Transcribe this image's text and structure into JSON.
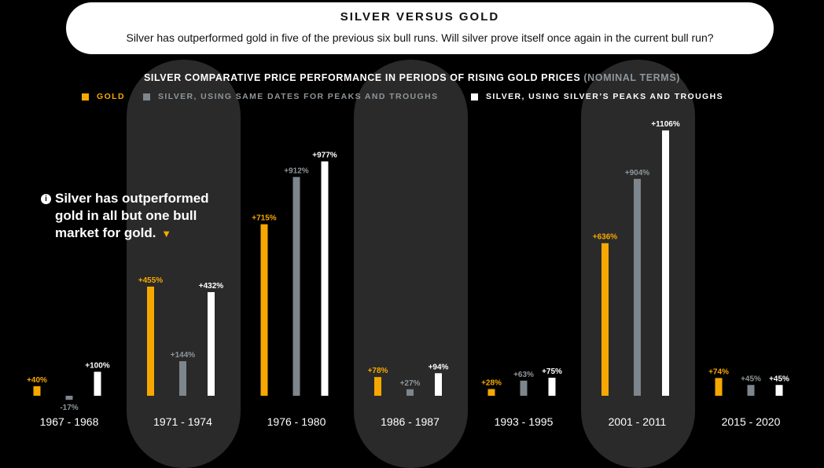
{
  "header": {
    "title": "SILVER VERSUS GOLD",
    "subtitle": "Silver has outperformed gold in five of the previous six bull runs. Will silver prove itself once again in the current bull run?"
  },
  "chart_title": {
    "main": "SILVER COMPARATIVE PRICE PERFORMANCE IN PERIODS OF RISING GOLD PRICES",
    "note": "(NOMINAL TERMS)"
  },
  "legend": {
    "gold": "GOLD",
    "silver_same": "SILVER, USING SAME DATES FOR PEAKS AND TROUGHS",
    "silver_own": "SILVER, USING SILVER’S PEAKS AND TROUGHS"
  },
  "callout": {
    "line1": "Silver has outperformed",
    "line2": "gold in all but one bull",
    "line3": "market for gold.",
    "icon": "info-icon",
    "pointer_icon": "down-triangle-icon"
  },
  "colors": {
    "gold": "#f7a800",
    "silver_same": "#7d868c",
    "silver_own": "#ffffff",
    "highlight_band": "#2a2a2a"
  },
  "chart_data": {
    "type": "bar",
    "categories": [
      "1967 - 1968",
      "1971 - 1974",
      "1976 - 1980",
      "1986 - 1987",
      "1993 - 1995",
      "2001 - 2011",
      "2015 - 2020"
    ],
    "highlighted_categories": [
      "1971 - 1974",
      "1986 - 1987",
      "2001 - 2011"
    ],
    "series": [
      {
        "name": "GOLD",
        "values": [
          40,
          455,
          715,
          78,
          28,
          636,
          74
        ],
        "labels": [
          "+40%",
          "+455%",
          "+715%",
          "+78%",
          "+28%",
          "+636%",
          "+74%"
        ]
      },
      {
        "name": "SILVER, USING SAME DATES FOR PEAKS AND TROUGHS",
        "values": [
          -17,
          144,
          912,
          27,
          63,
          904,
          45
        ],
        "labels": [
          "-17%",
          "+144%",
          "+912%",
          "+27%",
          "+63%",
          "+904%",
          "+45%"
        ]
      },
      {
        "name": "SILVER, USING SILVER’S PEAKS AND TROUGHS",
        "values": [
          100,
          432,
          977,
          94,
          75,
          1106,
          45
        ],
        "labels": [
          "+100%",
          "+432%",
          "+977%",
          "+94%",
          "+75%",
          "+1106%",
          "+45%"
        ]
      }
    ],
    "ylim": [
      -17,
      1106
    ],
    "grid": false,
    "legend_position": "top"
  }
}
